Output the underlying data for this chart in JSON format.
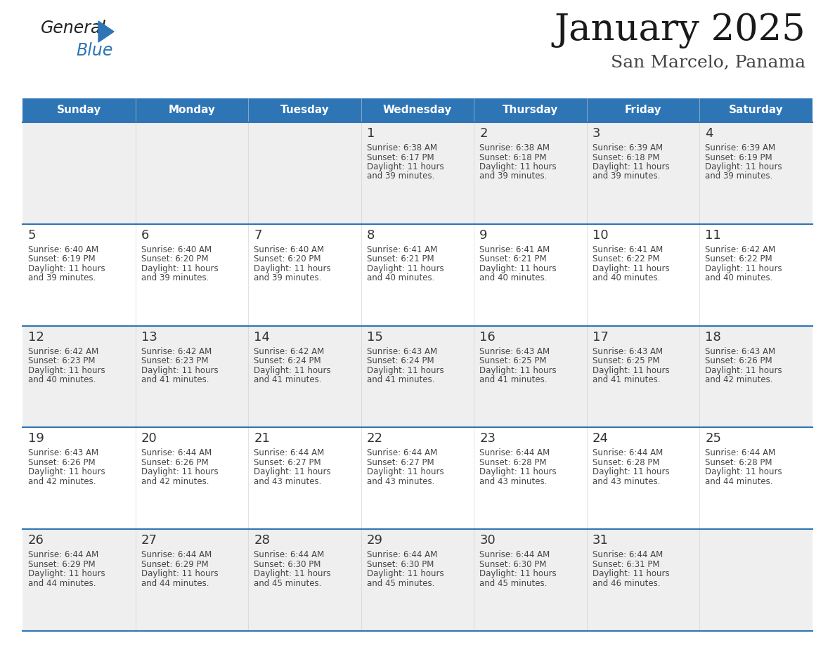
{
  "title": "January 2025",
  "subtitle": "San Marcelo, Panama",
  "header_color": "#2E75B6",
  "header_text_color": "#FFFFFF",
  "weekdays": [
    "Sunday",
    "Monday",
    "Tuesday",
    "Wednesday",
    "Thursday",
    "Friday",
    "Saturday"
  ],
  "row_bg_even": "#EFEFEF",
  "row_bg_odd": "#FFFFFF",
  "cell_border_color": "#2E75B6",
  "day_number_color": "#333333",
  "text_color": "#444444",
  "calendar": [
    [
      {
        "day": "",
        "sunrise": "",
        "sunset": "",
        "dl1": "",
        "dl2": ""
      },
      {
        "day": "",
        "sunrise": "",
        "sunset": "",
        "dl1": "",
        "dl2": ""
      },
      {
        "day": "",
        "sunrise": "",
        "sunset": "",
        "dl1": "",
        "dl2": ""
      },
      {
        "day": "1",
        "sunrise": "6:38 AM",
        "sunset": "6:17 PM",
        "dl1": "11 hours",
        "dl2": "and 39 minutes."
      },
      {
        "day": "2",
        "sunrise": "6:38 AM",
        "sunset": "6:18 PM",
        "dl1": "11 hours",
        "dl2": "and 39 minutes."
      },
      {
        "day": "3",
        "sunrise": "6:39 AM",
        "sunset": "6:18 PM",
        "dl1": "11 hours",
        "dl2": "and 39 minutes."
      },
      {
        "day": "4",
        "sunrise": "6:39 AM",
        "sunset": "6:19 PM",
        "dl1": "11 hours",
        "dl2": "and 39 minutes."
      }
    ],
    [
      {
        "day": "5",
        "sunrise": "6:40 AM",
        "sunset": "6:19 PM",
        "dl1": "11 hours",
        "dl2": "and 39 minutes."
      },
      {
        "day": "6",
        "sunrise": "6:40 AM",
        "sunset": "6:20 PM",
        "dl1": "11 hours",
        "dl2": "and 39 minutes."
      },
      {
        "day": "7",
        "sunrise": "6:40 AM",
        "sunset": "6:20 PM",
        "dl1": "11 hours",
        "dl2": "and 39 minutes."
      },
      {
        "day": "8",
        "sunrise": "6:41 AM",
        "sunset": "6:21 PM",
        "dl1": "11 hours",
        "dl2": "and 40 minutes."
      },
      {
        "day": "9",
        "sunrise": "6:41 AM",
        "sunset": "6:21 PM",
        "dl1": "11 hours",
        "dl2": "and 40 minutes."
      },
      {
        "day": "10",
        "sunrise": "6:41 AM",
        "sunset": "6:22 PM",
        "dl1": "11 hours",
        "dl2": "and 40 minutes."
      },
      {
        "day": "11",
        "sunrise": "6:42 AM",
        "sunset": "6:22 PM",
        "dl1": "11 hours",
        "dl2": "and 40 minutes."
      }
    ],
    [
      {
        "day": "12",
        "sunrise": "6:42 AM",
        "sunset": "6:23 PM",
        "dl1": "11 hours",
        "dl2": "and 40 minutes."
      },
      {
        "day": "13",
        "sunrise": "6:42 AM",
        "sunset": "6:23 PM",
        "dl1": "11 hours",
        "dl2": "and 41 minutes."
      },
      {
        "day": "14",
        "sunrise": "6:42 AM",
        "sunset": "6:24 PM",
        "dl1": "11 hours",
        "dl2": "and 41 minutes."
      },
      {
        "day": "15",
        "sunrise": "6:43 AM",
        "sunset": "6:24 PM",
        "dl1": "11 hours",
        "dl2": "and 41 minutes."
      },
      {
        "day": "16",
        "sunrise": "6:43 AM",
        "sunset": "6:25 PM",
        "dl1": "11 hours",
        "dl2": "and 41 minutes."
      },
      {
        "day": "17",
        "sunrise": "6:43 AM",
        "sunset": "6:25 PM",
        "dl1": "11 hours",
        "dl2": "and 41 minutes."
      },
      {
        "day": "18",
        "sunrise": "6:43 AM",
        "sunset": "6:26 PM",
        "dl1": "11 hours",
        "dl2": "and 42 minutes."
      }
    ],
    [
      {
        "day": "19",
        "sunrise": "6:43 AM",
        "sunset": "6:26 PM",
        "dl1": "11 hours",
        "dl2": "and 42 minutes."
      },
      {
        "day": "20",
        "sunrise": "6:44 AM",
        "sunset": "6:26 PM",
        "dl1": "11 hours",
        "dl2": "and 42 minutes."
      },
      {
        "day": "21",
        "sunrise": "6:44 AM",
        "sunset": "6:27 PM",
        "dl1": "11 hours",
        "dl2": "and 43 minutes."
      },
      {
        "day": "22",
        "sunrise": "6:44 AM",
        "sunset": "6:27 PM",
        "dl1": "11 hours",
        "dl2": "and 43 minutes."
      },
      {
        "day": "23",
        "sunrise": "6:44 AM",
        "sunset": "6:28 PM",
        "dl1": "11 hours",
        "dl2": "and 43 minutes."
      },
      {
        "day": "24",
        "sunrise": "6:44 AM",
        "sunset": "6:28 PM",
        "dl1": "11 hours",
        "dl2": "and 43 minutes."
      },
      {
        "day": "25",
        "sunrise": "6:44 AM",
        "sunset": "6:28 PM",
        "dl1": "11 hours",
        "dl2": "and 44 minutes."
      }
    ],
    [
      {
        "day": "26",
        "sunrise": "6:44 AM",
        "sunset": "6:29 PM",
        "dl1": "11 hours",
        "dl2": "and 44 minutes."
      },
      {
        "day": "27",
        "sunrise": "6:44 AM",
        "sunset": "6:29 PM",
        "dl1": "11 hours",
        "dl2": "and 44 minutes."
      },
      {
        "day": "28",
        "sunrise": "6:44 AM",
        "sunset": "6:30 PM",
        "dl1": "11 hours",
        "dl2": "and 45 minutes."
      },
      {
        "day": "29",
        "sunrise": "6:44 AM",
        "sunset": "6:30 PM",
        "dl1": "11 hours",
        "dl2": "and 45 minutes."
      },
      {
        "day": "30",
        "sunrise": "6:44 AM",
        "sunset": "6:30 PM",
        "dl1": "11 hours",
        "dl2": "and 45 minutes."
      },
      {
        "day": "31",
        "sunrise": "6:44 AM",
        "sunset": "6:31 PM",
        "dl1": "11 hours",
        "dl2": "and 46 minutes."
      },
      {
        "day": "",
        "sunrise": "",
        "sunset": "",
        "dl1": "",
        "dl2": ""
      }
    ]
  ],
  "logo_general_color": "#222222",
  "logo_blue_color": "#2E75B6",
  "fig_width": 11.88,
  "fig_height": 9.18,
  "dpi": 100
}
